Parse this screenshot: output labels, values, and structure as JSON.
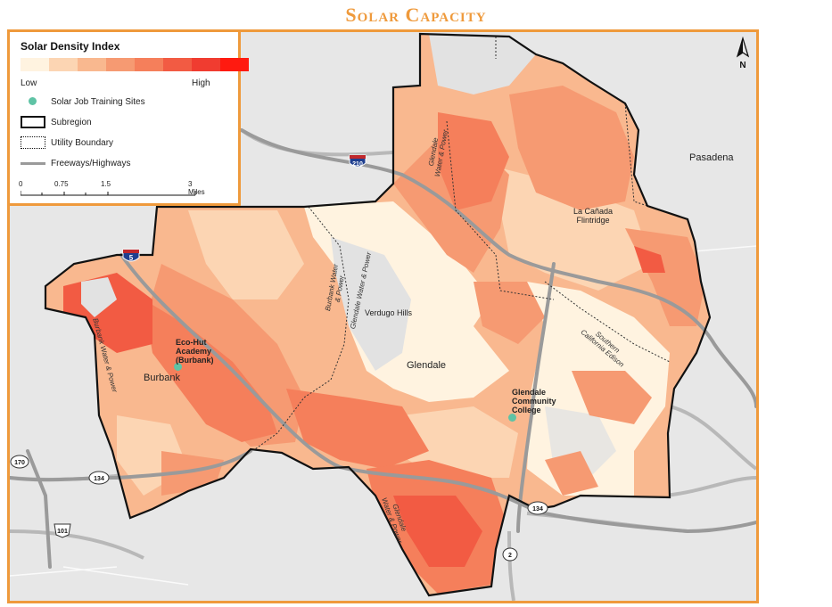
{
  "title": "Solar Capacity",
  "legend": {
    "title": "Solar Density Index",
    "ramp_colors": [
      "#fff3e0",
      "#fcd5b3",
      "#f9b88f",
      "#f69a72",
      "#f57f5b",
      "#f25b43",
      "#f03c30",
      "#ff1a10"
    ],
    "low_label": "Low",
    "high_label": "High",
    "items": [
      {
        "symbol": "teal-dot",
        "label": "Solar Job Training Sites"
      },
      {
        "symbol": "thick-outline",
        "label": "Subregion"
      },
      {
        "symbol": "dashed-outline",
        "label": "Utility Boundary"
      },
      {
        "symbol": "gray-line",
        "label": "Freeways/Highways"
      }
    ],
    "scale": {
      "ticks": [
        "0",
        "0.75",
        "1.5",
        "3 Miles"
      ]
    }
  },
  "north_label": "N",
  "places": {
    "pasadena": "Pasadena",
    "la_canada": "La Cañada\nFlintridge",
    "verdugo_hills": "Verdugo Hills",
    "glendale": "Glendale",
    "burbank": "Burbank"
  },
  "sites": {
    "eco_hut": "Eco-Hut\nAcademy\n(Burbank)",
    "glendale_cc": "Glendale\nCommunity\nCollege"
  },
  "utilities": {
    "gwp_north": "Glendale\nWater & Power",
    "bwp_a": "Burbank Water\n& Power",
    "gwp_mid": "Glendale Water & Power",
    "bwp_west": "Burbank Water & Power",
    "sce": "Southern\nCalifornia Edison",
    "gwp_south": "Glendale\nWater & Power"
  },
  "highways": {
    "i210": "210",
    "i5": "5",
    "r134_east": "134",
    "r134_west": "134",
    "r170": "170",
    "us101": "101",
    "r2": "2"
  },
  "colors": {
    "accent": "#ef9a3c",
    "site": "#5fc3a5",
    "freeway": "#9a9a9a"
  }
}
